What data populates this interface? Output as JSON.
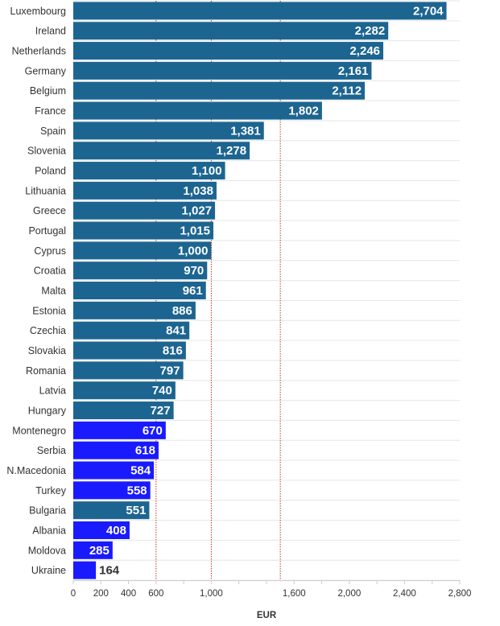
{
  "chart_data": {
    "type": "bar",
    "orientation": "horizontal",
    "xlabel": "EUR",
    "xlim": [
      0,
      2800
    ],
    "xticks": [
      0,
      200,
      400,
      600,
      1000,
      1600,
      2000,
      2400,
      2800
    ],
    "xtick_labels": [
      "0",
      "200",
      "400",
      "600",
      "1,000",
      "1,600",
      "2,000",
      "2,400",
      "2,800"
    ],
    "reference_lines": [
      600,
      1000,
      1500
    ],
    "grid": true,
    "colors": {
      "default": "#1d6591",
      "highlight": "#1a1aff"
    },
    "categories": [
      "Luxembourg",
      "Ireland",
      "Netherlands",
      "Germany",
      "Belgium",
      "France",
      "Spain",
      "Slovenia",
      "Poland",
      "Lithuania",
      "Greece",
      "Portugal",
      "Cyprus",
      "Croatia",
      "Malta",
      "Estonia",
      "Czechia",
      "Slovakia",
      "Romania",
      "Latvia",
      "Hungary",
      "Montenegro",
      "Serbia",
      "N.Macedonia",
      "Turkey",
      "Bulgaria",
      "Albania",
      "Moldova",
      "Ukraine"
    ],
    "values": [
      2704,
      2282,
      2246,
      2161,
      2112,
      1802,
      1381,
      1278,
      1100,
      1038,
      1027,
      1015,
      1000,
      970,
      961,
      886,
      841,
      816,
      797,
      740,
      727,
      670,
      618,
      584,
      558,
      551,
      408,
      285,
      164
    ],
    "value_labels": [
      "2,704",
      "2,282",
      "2,246",
      "2,161",
      "2,112",
      "1,802",
      "1,381",
      "1,278",
      "1,100",
      "1,038",
      "1,027",
      "1,015",
      "1,000",
      "970",
      "961",
      "886",
      "841",
      "816",
      "797",
      "740",
      "727",
      "670",
      "618",
      "584",
      "558",
      "551",
      "408",
      "285",
      "164"
    ],
    "highlighted": [
      "Montenegro",
      "Serbia",
      "N.Macedonia",
      "Turkey",
      "Albania",
      "Moldova",
      "Ukraine"
    ]
  }
}
